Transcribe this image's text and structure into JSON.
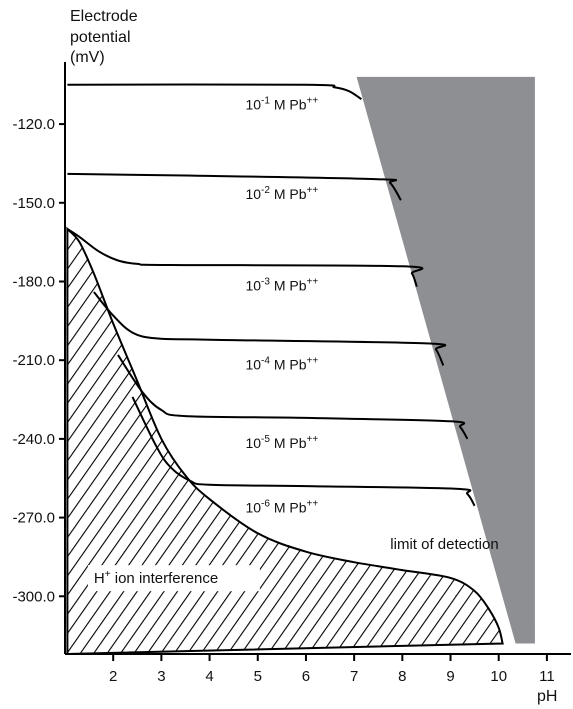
{
  "chart_data": {
    "type": "line",
    "ylabel_lines": [
      "Electrode",
      "potential",
      "(mV)"
    ],
    "xlabel": "pH",
    "xlim": [
      1,
      11.5
    ],
    "ylim": [
      -322,
      -99
    ],
    "x_ticks": [
      "2",
      "3",
      "4",
      "5",
      "6",
      "7",
      "8",
      "9",
      "10",
      "11"
    ],
    "y_ticks": [
      "-120.0",
      "-150.0",
      "-180.0",
      "-210.0",
      "-240.0",
      "-270.0",
      "-300.0"
    ],
    "series": [
      {
        "conc": "-1",
        "points": [
          [
            1.05,
            -105
          ],
          [
            6.0,
            -105
          ],
          [
            6.6,
            -106
          ],
          [
            6.9,
            -107.5
          ],
          [
            7.15,
            -110.5
          ]
        ]
      },
      {
        "conc": "-2",
        "points": [
          [
            1.05,
            -139
          ],
          [
            3.5,
            -139.6
          ],
          [
            7.5,
            -141
          ],
          [
            7.75,
            -142.5
          ],
          [
            7.97,
            -149
          ]
        ]
      },
      {
        "conc": "-3",
        "points": [
          [
            1.05,
            -160
          ],
          [
            1.3,
            -163
          ],
          [
            1.7,
            -168.5
          ],
          [
            2.1,
            -172
          ],
          [
            2.5,
            -173.3
          ],
          [
            3.2,
            -173.7
          ],
          [
            8.0,
            -174.2
          ],
          [
            8.2,
            -177
          ],
          [
            8.3,
            -182
          ]
        ]
      },
      {
        "conc": "-4",
        "points": [
          [
            1.6,
            -184
          ],
          [
            2.0,
            -193
          ],
          [
            2.4,
            -199.5
          ],
          [
            2.9,
            -201.7
          ],
          [
            4.0,
            -202.2
          ],
          [
            8.5,
            -203.6
          ],
          [
            8.7,
            -206
          ],
          [
            8.85,
            -212
          ]
        ]
      },
      {
        "conc": "-5",
        "points": [
          [
            2.1,
            -208
          ],
          [
            2.6,
            -222
          ],
          [
            3.0,
            -229
          ],
          [
            3.5,
            -231.3
          ],
          [
            6.0,
            -232
          ],
          [
            9.0,
            -233.3
          ],
          [
            9.2,
            -235.5
          ],
          [
            9.35,
            -240
          ]
        ]
      },
      {
        "conc": "-6",
        "points": [
          [
            2.4,
            -224
          ],
          [
            2.9,
            -243
          ],
          [
            3.2,
            -251
          ],
          [
            3.6,
            -256
          ],
          [
            4.0,
            -257.5
          ],
          [
            6.0,
            -258
          ],
          [
            9.1,
            -259
          ],
          [
            9.35,
            -261
          ],
          [
            9.5,
            -265.5
          ]
        ]
      }
    ],
    "h_boundary": [
      [
        1.05,
        -160
      ],
      [
        1.3,
        -165
      ],
      [
        1.6,
        -177
      ],
      [
        2.0,
        -196
      ],
      [
        2.5,
        -218
      ],
      [
        3.0,
        -240
      ],
      [
        3.5,
        -254
      ],
      [
        4.0,
        -263
      ],
      [
        5.0,
        -276
      ],
      [
        6.0,
        -283
      ],
      [
        7.0,
        -287
      ],
      [
        8.0,
        -290
      ],
      [
        9.0,
        -293
      ],
      [
        9.5,
        -298
      ],
      [
        9.8,
        -305
      ],
      [
        10.0,
        -312
      ],
      [
        10.08,
        -318
      ]
    ],
    "labels": [
      {
        "conc": "-1",
        "x": 5.5,
        "y": -114.5
      },
      {
        "conc": "-2",
        "x": 5.5,
        "y": -148.5
      },
      {
        "conc": "-3",
        "x": 5.5,
        "y": -183.5
      },
      {
        "conc": "-4",
        "x": 5.5,
        "y": -213.5
      },
      {
        "conc": "-5",
        "x": 5.5,
        "y": -243.5
      },
      {
        "conc": "-6",
        "x": 5.5,
        "y": -268.0
      }
    ],
    "label_prefix": "10",
    "label_suffix": " M Pb",
    "label_charge": "++",
    "limit_region": [
      [
        7.05,
        -102
      ],
      [
        10.75,
        -102
      ],
      [
        10.75,
        -318
      ],
      [
        10.35,
        -318
      ]
    ],
    "limit_label": "limit of detection",
    "limit_label_pos": {
      "x": 7.75,
      "y": -282
    },
    "h_label": {
      "text_main": "H",
      "text_sup": "+",
      "text_rest": " ion interference",
      "x": 1.6,
      "y": -295
    },
    "colors": {
      "limit_region": "#8e8f93",
      "lines": "#000000",
      "hatch": "#000000"
    }
  }
}
